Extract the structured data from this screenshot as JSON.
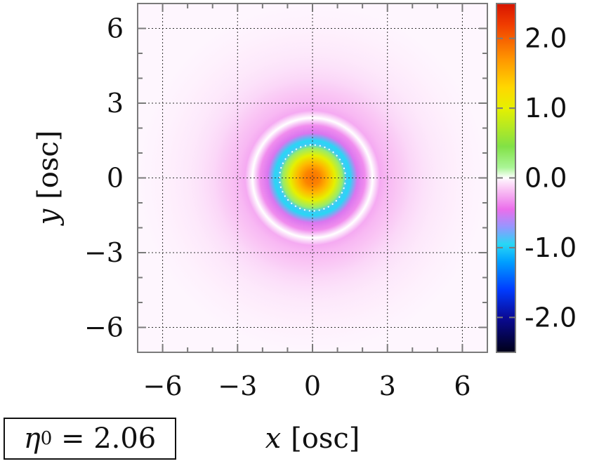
{
  "chart_data": {
    "type": "heatmap",
    "xlabel_var": "x",
    "xlabel_unit": "[osc]",
    "ylabel_var": "y",
    "ylabel_unit": "[osc]",
    "xlim": [
      -7,
      7
    ],
    "ylim": [
      -7,
      7
    ],
    "x_ticks": [
      -6,
      -3,
      0,
      3,
      6
    ],
    "y_ticks": [
      -6,
      -3,
      0,
      3,
      6
    ],
    "x_tick_labels": [
      "−6",
      "−3",
      "0",
      "3",
      "6"
    ],
    "y_tick_labels": [
      "−6",
      "−3",
      "0",
      "3",
      "6"
    ],
    "grid": true,
    "field_description": "radially symmetric concentric rings centered at origin",
    "radial_profile": {
      "r": [
        0.0,
        0.3,
        0.6,
        0.9,
        1.2,
        1.35,
        1.5,
        1.8,
        2.1,
        2.4,
        2.7,
        3.0,
        3.5,
        4.0,
        4.5,
        5.0,
        6.0,
        7.0
      ],
      "value": [
        1.9,
        1.8,
        1.5,
        1.0,
        0.3,
        -0.9,
        -0.95,
        -0.5,
        -0.35,
        0.0,
        -0.25,
        -0.2,
        -0.15,
        -0.1,
        -0.07,
        -0.05,
        -0.03,
        -0.02
      ]
    },
    "colorbar": {
      "range": [
        -2.5,
        2.5
      ],
      "ticks": [
        2.0,
        1.0,
        0.0,
        -1.0,
        -2.0
      ],
      "tick_labels": [
        "2.0",
        "1.0",
        "0.0",
        "-1.0",
        "-2.0"
      ],
      "colormap": "black-blue-cyan-violet-pink-white | white-green-yellow-orange-red"
    }
  },
  "annotation": {
    "eta_symbol": "η",
    "eta_sub": "0",
    "eta_text": " = 2.06"
  }
}
